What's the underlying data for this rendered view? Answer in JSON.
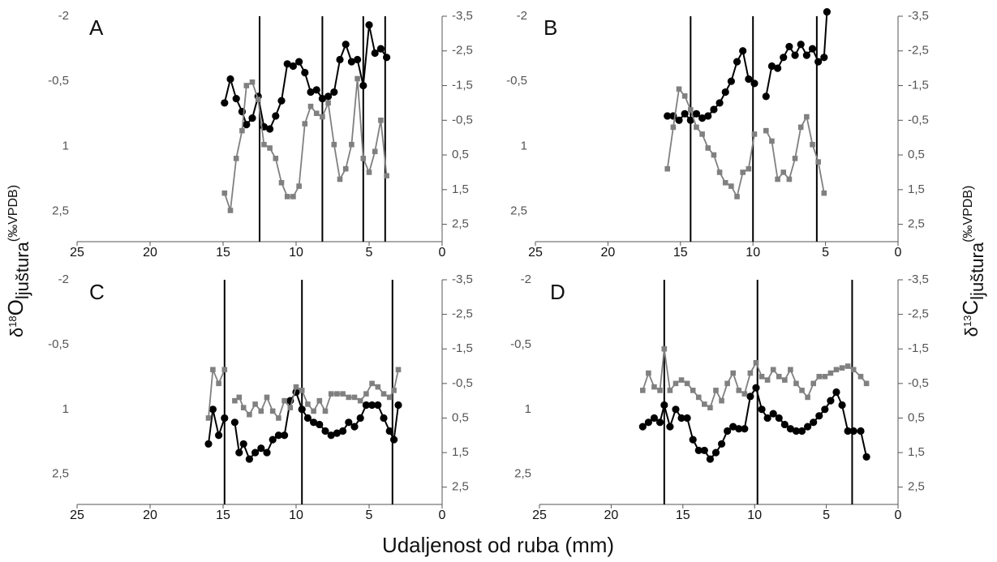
{
  "colors": {
    "oxygen_series": "#000000",
    "carbon_series": "#808080",
    "axis": "#555555",
    "season_line": "#000000"
  },
  "labels": {
    "x_axis": "Udaljenost od ruba (mm)",
    "y_left": {
      "prefix_sup": "18",
      "main": "O",
      "sub": "ljuštura",
      "unit": "(‰VPDB)",
      "delta": "δ"
    },
    "y_right": {
      "prefix_sup": "13",
      "main": "C",
      "sub": "ljuštura",
      "unit": "(‰VPDB)",
      "delta": "δ"
    }
  },
  "chart_data": [
    {
      "type": "line",
      "panel_label": "A",
      "x_ticks": [
        "25",
        "20",
        "15",
        "10",
        "5",
        "0"
      ],
      "xlim": [
        25,
        0
      ],
      "y_left_ticks": [
        "-2",
        "-0,5",
        "1",
        "2,5"
      ],
      "y_left_lim": [
        -2,
        3.2
      ],
      "y_right_ticks": [
        "-3,5",
        "-2,5",
        "-1,5",
        "-0,5",
        "0,5",
        "1,5",
        "2,5"
      ],
      "y_right_lim": [
        -3.5,
        3.0
      ],
      "vertical_lines": [
        12.5,
        8.2,
        5.4,
        3.9
      ],
      "series": [
        {
          "axis": "left",
          "marker": "circle",
          "x": [
            14.9,
            14.5,
            14.1,
            13.7,
            13.4,
            13.0,
            12.6,
            12.2,
            11.8,
            11.4,
            11.0,
            10.6,
            10.2,
            9.8,
            9.4,
            9.0,
            8.6,
            8.2,
            7.8,
            7.4,
            7.0,
            6.6,
            6.2,
            5.8,
            5.4,
            5.0,
            4.6,
            4.2,
            3.8
          ],
          "y": [
            0.0,
            -0.55,
            -0.1,
            0.2,
            0.5,
            0.35,
            -0.15,
            0.55,
            0.6,
            0.3,
            -0.05,
            -0.9,
            -0.85,
            -0.95,
            -0.7,
            -0.25,
            -0.3,
            -0.1,
            -0.15,
            -0.25,
            -1.0,
            -1.35,
            -0.95,
            -1.0,
            -0.4,
            -1.8,
            -1.15,
            -1.25,
            -1.05
          ]
        },
        {
          "axis": "right",
          "marker": "square",
          "x": [
            14.9,
            14.5,
            14.1,
            13.7,
            13.4,
            13.0,
            12.6,
            12.2,
            11.8,
            11.4,
            11.0,
            10.6,
            10.2,
            9.8,
            9.4,
            9.0,
            8.6,
            8.2,
            7.8,
            7.4,
            7.0,
            6.6,
            6.2,
            5.8,
            5.4,
            5.0,
            4.6,
            4.2,
            3.8
          ],
          "y": [
            1.6,
            2.1,
            0.6,
            -0.2,
            -1.5,
            -1.6,
            -1.1,
            0.2,
            0.3,
            0.6,
            1.3,
            1.7,
            1.7,
            1.4,
            -0.4,
            -0.9,
            -0.7,
            -0.6,
            -1.0,
            0.2,
            1.2,
            0.9,
            0.2,
            -1.7,
            0.6,
            1.0,
            0.4,
            -0.5,
            1.1
          ]
        }
      ]
    },
    {
      "type": "line",
      "panel_label": "B",
      "x_ticks": [
        "25",
        "20",
        "15",
        "10",
        "5",
        "0"
      ],
      "xlim": [
        25,
        0
      ],
      "y_left_ticks": [
        "-2",
        "-0,5",
        "1",
        "2,5"
      ],
      "y_left_lim": [
        -2,
        3.2
      ],
      "y_right_ticks": [
        "-3,5",
        "-2,5",
        "-1,5",
        "-0,5",
        "0,5",
        "1,5",
        "2,5"
      ],
      "y_right_lim": [
        -3.5,
        3.0
      ],
      "vertical_lines": [
        14.3,
        10.0,
        5.6
      ],
      "series": [
        {
          "axis": "left",
          "marker": "circle",
          "x": [
            15.9,
            15.5,
            15.1,
            14.7,
            14.3,
            13.9,
            13.5,
            13.1,
            12.7,
            12.3,
            11.9,
            11.5,
            11.1,
            10.7,
            10.3,
            9.9,
            null,
            9.1,
            8.7,
            8.3,
            7.9,
            7.5,
            7.1,
            6.7,
            6.3,
            5.9,
            5.5,
            5.1,
            4.9
          ],
          "y": [
            0.3,
            0.3,
            0.4,
            0.25,
            0.4,
            0.25,
            0.35,
            0.3,
            0.15,
            0.0,
            -0.25,
            -0.5,
            -0.95,
            -1.2,
            -0.55,
            -0.45,
            null,
            -0.15,
            -0.85,
            -0.8,
            -1.05,
            -1.3,
            -1.1,
            -1.35,
            -1.1,
            -1.25,
            -0.95,
            -1.05,
            -2.1
          ]
        },
        {
          "axis": "right",
          "marker": "square",
          "x": [
            15.9,
            15.5,
            15.1,
            14.7,
            14.3,
            13.9,
            13.5,
            13.1,
            12.7,
            12.3,
            11.9,
            11.5,
            11.1,
            10.7,
            10.3,
            9.9,
            null,
            9.1,
            8.7,
            8.3,
            7.9,
            7.5,
            7.1,
            6.7,
            6.3,
            5.9,
            5.5,
            5.1
          ],
          "y": [
            0.9,
            -0.3,
            -1.4,
            -1.2,
            -0.8,
            -0.3,
            -0.1,
            0.3,
            0.5,
            1.0,
            1.3,
            1.4,
            1.7,
            1.0,
            0.9,
            -0.1,
            null,
            -0.2,
            0.1,
            1.2,
            1.0,
            1.2,
            0.6,
            -0.3,
            -0.6,
            0.2,
            0.7,
            1.6
          ]
        }
      ]
    },
    {
      "type": "line",
      "panel_label": "C",
      "x_ticks": [
        "25",
        "20",
        "15",
        "10",
        "5",
        "0"
      ],
      "xlim": [
        25,
        0
      ],
      "y_left_ticks": [
        "-2",
        "-0,5",
        "1",
        "2,5"
      ],
      "y_left_lim": [
        -2,
        3.2
      ],
      "y_right_ticks": [
        "-3,5",
        "-2,5",
        "-1,5",
        "-0,5",
        "0,5",
        "1,5",
        "2,5"
      ],
      "y_right_lim": [
        -3.5,
        3.0
      ],
      "vertical_lines": [
        14.9,
        9.6,
        3.4
      ],
      "series": [
        {
          "axis": "left",
          "marker": "circle",
          "x": [
            16.0,
            15.7,
            15.3,
            14.9,
            null,
            14.2,
            13.9,
            13.6,
            13.2,
            12.8,
            12.4,
            12.0,
            11.6,
            11.2,
            10.8,
            10.4,
            10.0,
            9.6,
            9.2,
            8.8,
            8.4,
            8.0,
            7.6,
            7.2,
            6.8,
            6.4,
            6.0,
            5.6,
            5.2,
            4.8,
            4.4,
            4.0,
            3.6,
            3.3,
            3.0
          ],
          "y": [
            1.8,
            1.0,
            1.6,
            1.2,
            null,
            1.3,
            2.0,
            1.8,
            2.15,
            2.0,
            1.9,
            2.0,
            1.7,
            1.6,
            1.6,
            0.8,
            0.6,
            1.0,
            1.2,
            1.3,
            1.35,
            1.5,
            1.6,
            1.55,
            1.5,
            1.3,
            1.4,
            1.2,
            0.9,
            0.9,
            0.9,
            1.2,
            1.5,
            1.7,
            0.9
          ]
        },
        {
          "axis": "right",
          "marker": "square",
          "x": [
            16.0,
            15.7,
            15.3,
            14.9,
            null,
            14.2,
            13.9,
            13.6,
            13.2,
            12.8,
            12.4,
            12.0,
            11.6,
            11.2,
            10.8,
            10.4,
            10.0,
            9.6,
            9.2,
            8.8,
            8.4,
            8.0,
            7.6,
            7.2,
            6.8,
            6.4,
            6.0,
            5.6,
            5.2,
            4.8,
            4.4,
            4.0,
            3.6,
            3.3,
            3.0
          ],
          "y": [
            0.5,
            -0.9,
            -0.5,
            -0.9,
            null,
            0.0,
            -0.1,
            0.2,
            0.4,
            0.1,
            0.3,
            -0.1,
            0.3,
            0.5,
            0.0,
            0.2,
            -0.4,
            -0.3,
            0.1,
            0.3,
            0.0,
            0.3,
            -0.2,
            -0.2,
            -0.2,
            -0.1,
            -0.1,
            0.0,
            -0.2,
            -0.5,
            -0.4,
            -0.2,
            -0.1,
            -0.3,
            -0.9
          ]
        }
      ]
    },
    {
      "type": "line",
      "panel_label": "D",
      "x_ticks": [
        "25",
        "20",
        "15",
        "10",
        "5",
        "0"
      ],
      "xlim": [
        25,
        0
      ],
      "y_left_ticks": [
        "-2",
        "-0,5",
        "1",
        "2,5"
      ],
      "y_left_lim": [
        -2,
        3.2
      ],
      "y_right_ticks": [
        "-3,5",
        "-2,5",
        "-1,5",
        "-0,5",
        "0,5",
        "1,5",
        "2,5"
      ],
      "y_right_lim": [
        -3.5,
        3.0
      ],
      "vertical_lines": [
        16.3,
        9.8,
        3.2
      ],
      "series": [
        {
          "axis": "left",
          "marker": "circle",
          "x": [
            17.8,
            17.4,
            17.0,
            16.6,
            16.3,
            15.9,
            15.5,
            15.1,
            14.7,
            14.3,
            13.9,
            13.5,
            13.1,
            12.7,
            12.3,
            11.9,
            11.5,
            11.1,
            10.7,
            10.3,
            9.9,
            9.5,
            9.1,
            8.7,
            8.3,
            7.9,
            7.5,
            7.1,
            6.7,
            6.3,
            5.9,
            5.5,
            5.1,
            4.7,
            4.3,
            3.9,
            3.5,
            3.1,
            2.6,
            2.2
          ],
          "y": [
            1.4,
            1.3,
            1.2,
            1.3,
            0.9,
            1.4,
            1.0,
            1.2,
            1.2,
            1.7,
            1.95,
            1.95,
            2.15,
            2.0,
            1.8,
            1.5,
            1.4,
            1.45,
            1.45,
            0.7,
            0.5,
            1.0,
            1.2,
            1.1,
            1.2,
            1.35,
            1.45,
            1.5,
            1.5,
            1.4,
            1.3,
            1.15,
            1.0,
            0.8,
            0.6,
            0.9,
            1.5,
            1.5,
            1.5,
            2.1
          ]
        },
        {
          "axis": "right",
          "marker": "square",
          "x": [
            17.8,
            17.4,
            17.0,
            16.6,
            16.3,
            15.9,
            15.5,
            15.1,
            14.7,
            14.3,
            13.9,
            13.5,
            13.1,
            12.7,
            12.3,
            11.9,
            11.5,
            11.1,
            10.7,
            10.3,
            9.9,
            9.5,
            9.1,
            8.7,
            8.3,
            7.9,
            7.5,
            7.1,
            6.7,
            6.3,
            5.9,
            5.5,
            5.1,
            4.7,
            4.3,
            3.9,
            3.5,
            3.1,
            2.6,
            2.2
          ],
          "y": [
            -0.3,
            -0.8,
            -0.4,
            -0.3,
            -1.5,
            -0.3,
            -0.5,
            -0.6,
            -0.5,
            -0.3,
            -0.1,
            0.1,
            0.2,
            -0.3,
            0.0,
            -0.5,
            -0.8,
            -0.3,
            -0.2,
            -0.8,
            -1.1,
            -0.7,
            -0.6,
            -0.9,
            -0.7,
            -0.6,
            -0.9,
            -0.5,
            -0.3,
            -0.1,
            -0.5,
            -0.7,
            -0.7,
            -0.8,
            -0.9,
            -0.95,
            -1.0,
            -0.9,
            -0.7,
            -0.5
          ]
        }
      ]
    }
  ]
}
